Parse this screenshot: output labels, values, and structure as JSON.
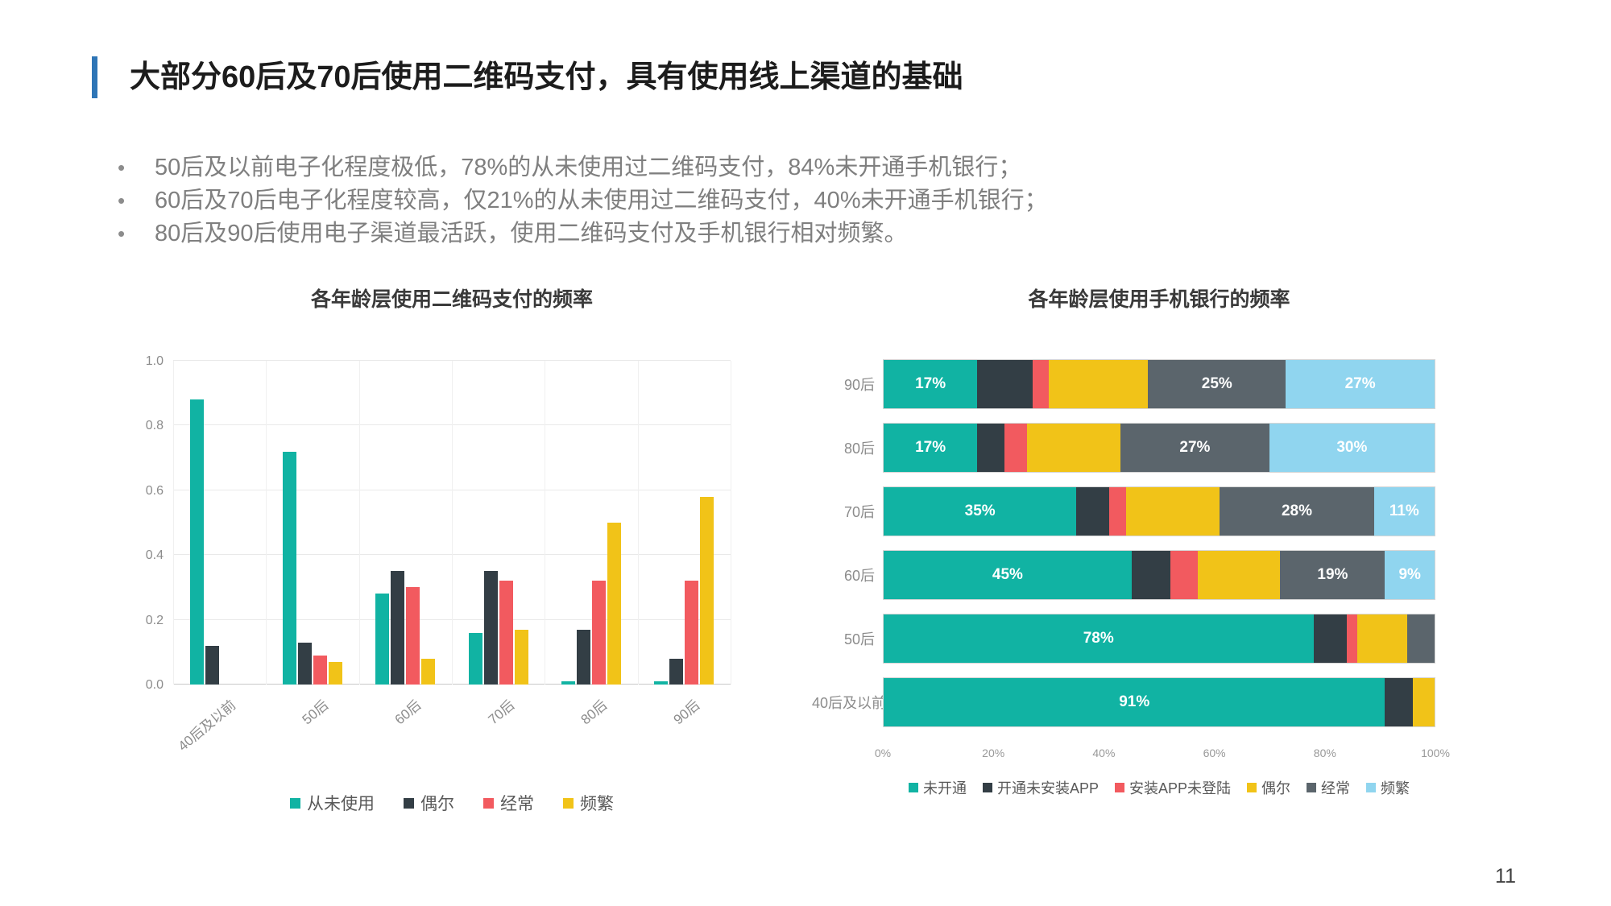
{
  "slide": {
    "title": "大部分60后及70后使用二维码支付，具有使用线上渠道的基础",
    "bullets": [
      "50后及以前电子化程度极低，78%的从未使用过二维码支付，84%未开通手机银行；",
      "60后及70后电子化程度较高，仅21%的从未使用过二维码支付，40%未开通手机银行；",
      "80后及90后使用电子渠道最活跃，使用二维码支付及手机银行相对频繁。"
    ],
    "page_number": "11"
  },
  "colors": {
    "accent_blue": "#2e75b6",
    "teal": "#11b3a3",
    "dark": "#333e45",
    "red": "#f25a5f",
    "yellow": "#f1c318",
    "gray": "#5b656c",
    "light_blue": "#90d5ef"
  },
  "chart_data": [
    {
      "type": "bar",
      "title": "各年龄层使用二维码支付的频率",
      "categories": [
        "40后及以前",
        "50后",
        "60后",
        "70后",
        "80后",
        "90后"
      ],
      "series": [
        {
          "name": "从未使用",
          "color": "#11b3a3",
          "values": [
            0.88,
            0.72,
            0.28,
            0.16,
            0.01,
            0.01
          ]
        },
        {
          "name": "偶尔",
          "color": "#333e45",
          "values": [
            0.12,
            0.13,
            0.35,
            0.35,
            0.17,
            0.08
          ]
        },
        {
          "name": "经常",
          "color": "#f25a5f",
          "values": [
            0,
            0.09,
            0.3,
            0.32,
            0.32,
            0.32
          ]
        },
        {
          "name": "频繁",
          "color": "#f1c318",
          "values": [
            0,
            0.07,
            0.08,
            0.17,
            0.5,
            0.58
          ]
        }
      ],
      "ylim": [
        0,
        1
      ],
      "yticks": [
        0,
        0.2,
        0.4,
        0.6,
        0.8,
        1
      ],
      "grid": true,
      "legend_position": "bottom"
    },
    {
      "type": "stacked-bar-horizontal",
      "title": "各年龄层使用手机银行的频率",
      "categories": [
        "90后",
        "80后",
        "70后",
        "60后",
        "50后",
        "40后及以前"
      ],
      "series": [
        {
          "name": "未开通",
          "color": "#11b3a3",
          "values": [
            17,
            17,
            35,
            45,
            78,
            91
          ],
          "labels": [
            "17%",
            "17%",
            "35%",
            "45%",
            "78%",
            "91%"
          ]
        },
        {
          "name": "开通未安装APP",
          "color": "#333e45",
          "values": [
            10,
            5,
            6,
            7,
            6,
            5
          ],
          "labels": [
            null,
            null,
            null,
            null,
            null,
            null
          ]
        },
        {
          "name": "安装APP未登陆",
          "color": "#f25a5f",
          "values": [
            3,
            4,
            3,
            5,
            2,
            0
          ],
          "labels": [
            null,
            null,
            null,
            null,
            null,
            null
          ]
        },
        {
          "name": "偶尔",
          "color": "#f1c318",
          "values": [
            18,
            17,
            17,
            15,
            9,
            4
          ],
          "labels": [
            null,
            null,
            null,
            null,
            null,
            null
          ]
        },
        {
          "name": "经常",
          "color": "#5b656c",
          "values": [
            25,
            27,
            28,
            19,
            5,
            0
          ],
          "labels": [
            "25%",
            "27%",
            "28%",
            "19%",
            null,
            null
          ]
        },
        {
          "name": "频繁",
          "color": "#90d5ef",
          "values": [
            27,
            30,
            11,
            9,
            0,
            0
          ],
          "labels": [
            "27%",
            "30%",
            "11%",
            "9%",
            null,
            null
          ]
        }
      ],
      "xlim": [
        0,
        100
      ],
      "xticks": [
        "0%",
        "20%",
        "40%",
        "60%",
        "80%",
        "100%"
      ],
      "legend_position": "bottom"
    }
  ]
}
